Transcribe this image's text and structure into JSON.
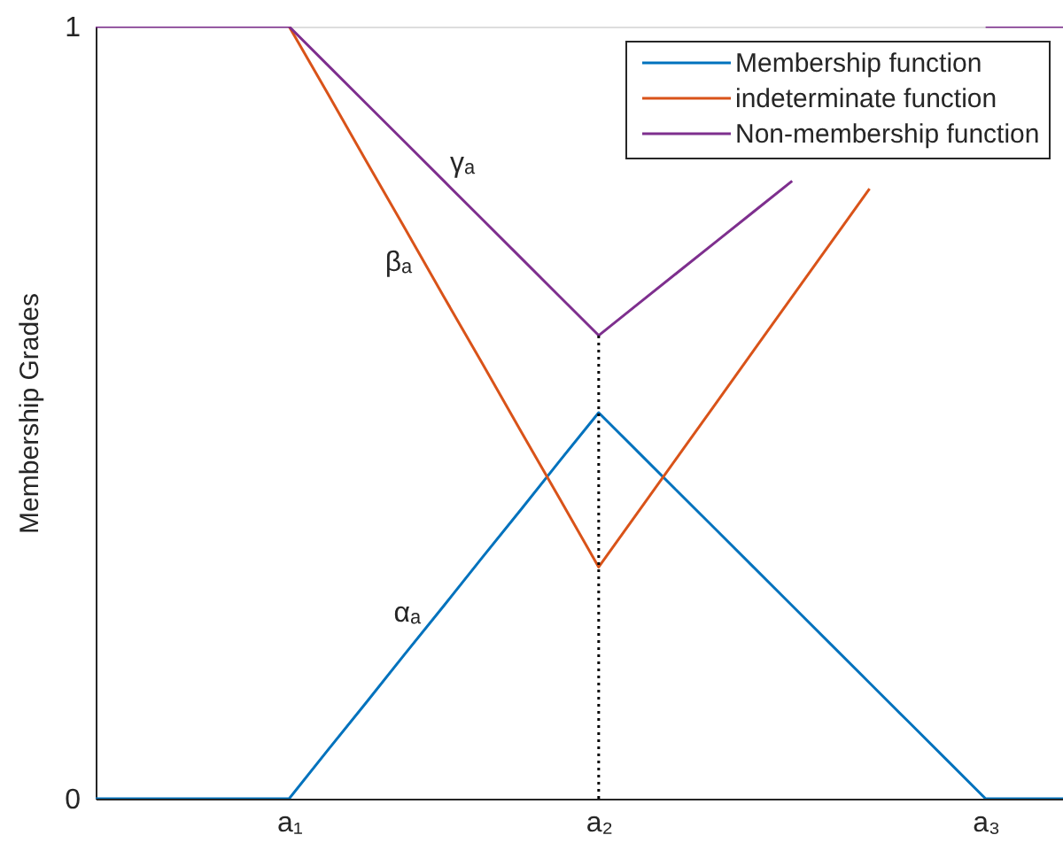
{
  "chart_data": {
    "type": "line",
    "ylabel": "Membership Grades",
    "categories": [
      null,
      null,
      null,
      null,
      null,
      "a₁",
      null,
      null,
      null,
      null,
      null,
      null,
      null,
      "a₂",
      null,
      null,
      null,
      null,
      null,
      null,
      null,
      null,
      null,
      "a₃",
      null,
      null
    ],
    "ylim": [
      0,
      1
    ],
    "yticks": [
      0,
      1
    ],
    "legend": "top right",
    "grid": false,
    "series": [
      {
        "name": "Membership function",
        "color": "#0072bd",
        "values": [
          0,
          0,
          0,
          0,
          0,
          0,
          0.063,
          0.125,
          0.188,
          0.25,
          0.313,
          0.375,
          0.438,
          0.5,
          0.45,
          0.4,
          0.35,
          0.3,
          0.25,
          0.2,
          0.15,
          0.1,
          0.05,
          0,
          0,
          0
        ]
      },
      {
        "name": "indeterminate function",
        "color": "#d95319",
        "values": [
          null,
          null,
          null,
          null,
          null,
          1,
          0.913,
          0.825,
          0.738,
          0.65,
          0.563,
          0.475,
          0.388,
          0.3,
          0.37,
          0.44,
          0.51,
          0.58,
          0.65,
          0.72,
          0.79,
          null,
          null,
          null,
          null,
          null
        ]
      },
      {
        "name": "Non-membership function",
        "color": "#7e2f8e",
        "values": [
          1,
          1,
          1,
          1,
          1,
          1,
          0.95,
          0.9,
          0.85,
          0.8,
          0.75,
          0.7,
          0.65,
          0.6,
          0.64,
          0.68,
          0.72,
          0.76,
          0.8,
          null,
          null,
          null,
          null,
          1,
          1,
          1
        ]
      },
      {
        "type": "line",
        "color": "#000000",
        "line_style": "dotted",
        "x": [
          "a₂",
          "a₂"
        ],
        "values": [
          0,
          0.6
        ]
      }
    ],
    "annotations": [
      "γₐ",
      "βₐ",
      "αₐ"
    ]
  }
}
